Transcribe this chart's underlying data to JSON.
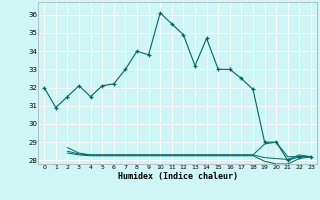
{
  "title": "",
  "xlabel": "Humidex (Indice chaleur)",
  "bg_color": "#cff5f5",
  "grid_color": "#ffffff",
  "line_color": "#006666",
  "xlim": [
    -0.5,
    23.5
  ],
  "ylim": [
    27.8,
    36.7
  ],
  "yticks": [
    28,
    29,
    30,
    31,
    32,
    33,
    34,
    35,
    36
  ],
  "xticks": [
    0,
    1,
    2,
    3,
    4,
    5,
    6,
    7,
    8,
    9,
    10,
    11,
    12,
    13,
    14,
    15,
    16,
    17,
    18,
    19,
    20,
    21,
    22,
    23
  ],
  "main_x": [
    0,
    1,
    2,
    3,
    4,
    5,
    6,
    7,
    8,
    9,
    10,
    11,
    12,
    13,
    14,
    15,
    16,
    17,
    18,
    19,
    20,
    21,
    22,
    23
  ],
  "main_y": [
    32.0,
    30.9,
    31.5,
    32.1,
    31.5,
    32.1,
    32.2,
    33.0,
    34.0,
    33.8,
    36.1,
    35.5,
    34.9,
    33.2,
    34.7,
    33.0,
    33.0,
    32.5,
    31.9,
    29.0,
    29.0,
    28.0,
    28.2,
    28.2
  ],
  "flat_lines": [
    {
      "x": [
        2,
        3,
        4,
        5,
        6,
        7,
        8,
        9,
        10,
        11,
        12,
        13,
        14,
        15,
        16,
        17,
        18,
        19,
        20,
        21,
        22,
        23
      ],
      "y": [
        28.7,
        28.4,
        28.3,
        28.3,
        28.3,
        28.3,
        28.3,
        28.3,
        28.3,
        28.3,
        28.3,
        28.3,
        28.3,
        28.3,
        28.3,
        28.3,
        28.3,
        28.9,
        29.0,
        28.2,
        28.2,
        28.2
      ]
    },
    {
      "x": [
        2,
        3,
        4,
        5,
        6,
        7,
        8,
        9,
        10,
        11,
        12,
        13,
        14,
        15,
        16,
        17,
        18,
        19,
        20,
        21,
        22,
        23
      ],
      "y": [
        28.5,
        28.35,
        28.3,
        28.3,
        28.3,
        28.3,
        28.3,
        28.3,
        28.3,
        28.3,
        28.3,
        28.3,
        28.3,
        28.3,
        28.3,
        28.3,
        28.3,
        28.15,
        28.1,
        28.05,
        28.3,
        28.2
      ]
    },
    {
      "x": [
        2,
        3,
        4,
        5,
        6,
        7,
        8,
        9,
        10,
        11,
        12,
        13,
        14,
        15,
        16,
        17,
        18,
        19,
        20,
        21,
        22,
        23
      ],
      "y": [
        28.4,
        28.3,
        28.25,
        28.25,
        28.25,
        28.25,
        28.25,
        28.25,
        28.25,
        28.25,
        28.25,
        28.25,
        28.25,
        28.25,
        28.25,
        28.25,
        28.25,
        27.95,
        27.8,
        27.8,
        28.1,
        28.2
      ]
    }
  ]
}
